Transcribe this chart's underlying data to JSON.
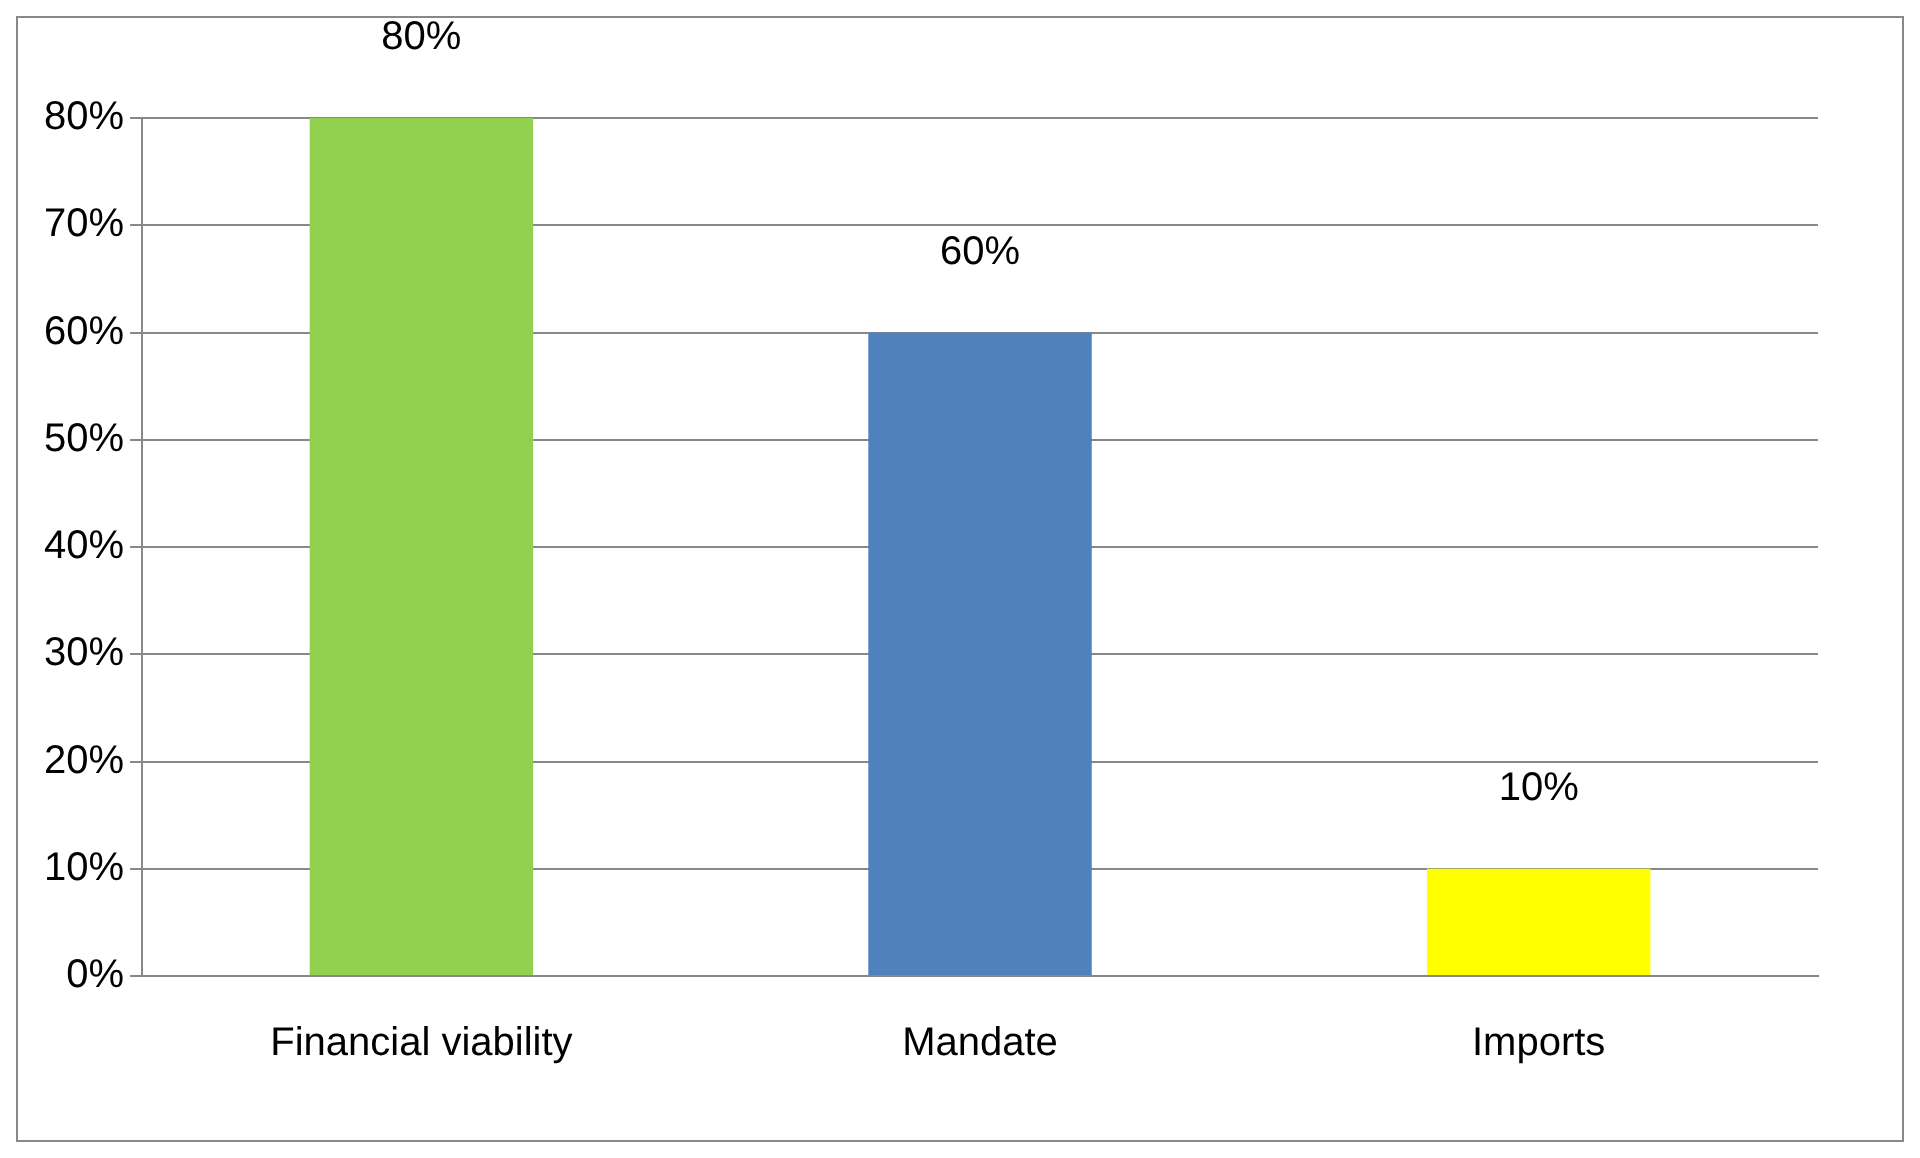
{
  "chart_data": {
    "type": "bar",
    "categories": [
      "Financial viability",
      "Mandate",
      "Imports"
    ],
    "values": [
      80,
      60,
      10
    ],
    "colors": [
      "#92d050",
      "#4f81bd",
      "#ffff00"
    ],
    "value_labels": [
      "80%",
      "60%",
      "10%"
    ],
    "ylim": [
      0,
      80
    ],
    "yticks": [
      {
        "value": 0,
        "label": "0%"
      },
      {
        "value": 10,
        "label": "10%"
      },
      {
        "value": 20,
        "label": "20%"
      },
      {
        "value": 30,
        "label": "30%"
      },
      {
        "value": 40,
        "label": "40%"
      },
      {
        "value": 50,
        "label": "50%"
      },
      {
        "value": 60,
        "label": "60%"
      },
      {
        "value": 70,
        "label": "70%"
      },
      {
        "value": 80,
        "label": "80%"
      }
    ],
    "grid": "y",
    "legend": false
  }
}
